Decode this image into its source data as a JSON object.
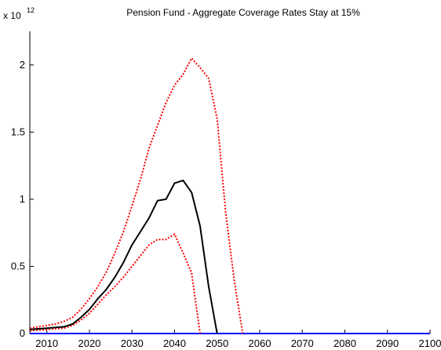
{
  "chart_data": {
    "type": "line",
    "title": "Pension Fund - Aggregate Coverage Rates Stay at 15%",
    "y_scale_base": "x 10",
    "y_scale_exponent": "12",
    "x": [
      2006,
      2008,
      2010,
      2012,
      2014,
      2016,
      2018,
      2020,
      2022,
      2024,
      2026,
      2028,
      2030,
      2032,
      2034,
      2036,
      2038,
      2040,
      2042,
      2044,
      2046,
      2048,
      2050,
      2052,
      2054,
      2056,
      2100
    ],
    "series": [
      {
        "color": "#0000ff",
        "style": "solid",
        "values": [
          0,
          0,
          0,
          0,
          0,
          0,
          0,
          0,
          0,
          0,
          0,
          0,
          0,
          0,
          0,
          0,
          0,
          0,
          0,
          0,
          0,
          0,
          0,
          0,
          0,
          0,
          0
        ]
      },
      {
        "color": "#ff0000",
        "style": "dotted",
        "values": [
          0.04,
          0.05,
          0.06,
          0.07,
          0.09,
          0.12,
          0.18,
          0.26,
          0.35,
          0.46,
          0.6,
          0.76,
          0.95,
          1.15,
          1.38,
          1.55,
          1.72,
          1.85,
          1.93,
          2.05,
          1.98,
          1.9,
          1.6,
          0.9,
          0.4,
          0,
          null
        ]
      },
      {
        "color": "#ff0000",
        "style": "dotted",
        "values": [
          0.02,
          0.025,
          0.03,
          0.035,
          0.04,
          0.06,
          0.1,
          0.15,
          0.22,
          0.29,
          0.35,
          0.42,
          0.5,
          0.58,
          0.66,
          0.7,
          0.7,
          0.74,
          0.6,
          0.45,
          0,
          null,
          null,
          null,
          null,
          null,
          null
        ]
      },
      {
        "color": "#000000",
        "style": "solid",
        "values": [
          0.03,
          0.035,
          0.04,
          0.045,
          0.05,
          0.07,
          0.12,
          0.18,
          0.26,
          0.33,
          0.42,
          0.53,
          0.66,
          0.76,
          0.86,
          0.99,
          1.0,
          1.12,
          1.14,
          1.05,
          0.8,
          0.35,
          0,
          null,
          null,
          null,
          null
        ]
      }
    ],
    "xlim": [
      2006,
      2100
    ],
    "ylim": [
      0,
      2.25
    ],
    "xticks": [
      2010,
      2020,
      2030,
      2040,
      2050,
      2060,
      2070,
      2080,
      2090,
      2100
    ],
    "yticks": [
      0,
      0.5,
      1,
      1.5,
      2
    ],
    "grid": false
  }
}
